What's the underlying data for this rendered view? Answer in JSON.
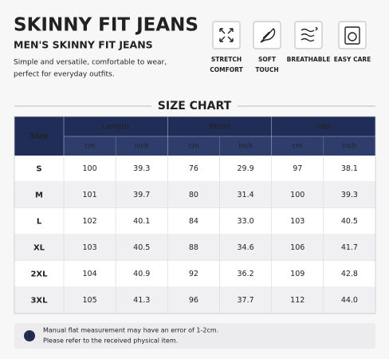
{
  "header": {
    "title": "SKINNY FIT JEANS",
    "subtitle": "MEN'S SKINNY FIT JEANS",
    "description": [
      "Simple and versatile, comfortable to wear,",
      "perfect for everyday outfits."
    ]
  },
  "features": [
    {
      "label": [
        "STRETCH",
        "COMFORT"
      ]
    },
    {
      "label": [
        "SOFT",
        "TOUCH"
      ]
    },
    {
      "label": [
        "BREATHABLE"
      ]
    },
    {
      "label": [
        "EASY CARE"
      ]
    }
  ],
  "size_chart": {
    "title": "SIZE CHART",
    "size_header": "Size",
    "groups": [
      "Length",
      "Waist",
      "Hip"
    ],
    "units": [
      "cm",
      "inch",
      "cm",
      "inch",
      "cm",
      "inch"
    ],
    "rows": [
      [
        "S",
        "100",
        "39.3",
        "76",
        "29.9",
        "97",
        "38.1"
      ],
      [
        "M",
        "101",
        "39.7",
        "80",
        "31.4",
        "100",
        "39.3"
      ],
      [
        "L",
        "102",
        "40.1",
        "84",
        "33.0",
        "103",
        "40.5"
      ],
      [
        "XL",
        "103",
        "40.5",
        "88",
        "34.6",
        "106",
        "41.7"
      ],
      [
        "2XL",
        "104",
        "40.9",
        "92",
        "36.2",
        "109",
        "42.8"
      ],
      [
        "3XL",
        "105",
        "41.3",
        "96",
        "37.7",
        "112",
        "44.0"
      ]
    ]
  },
  "note": [
    "Manual flat measurement may have an error of 1-2cm.",
    "Please refer to the received physical item."
  ]
}
